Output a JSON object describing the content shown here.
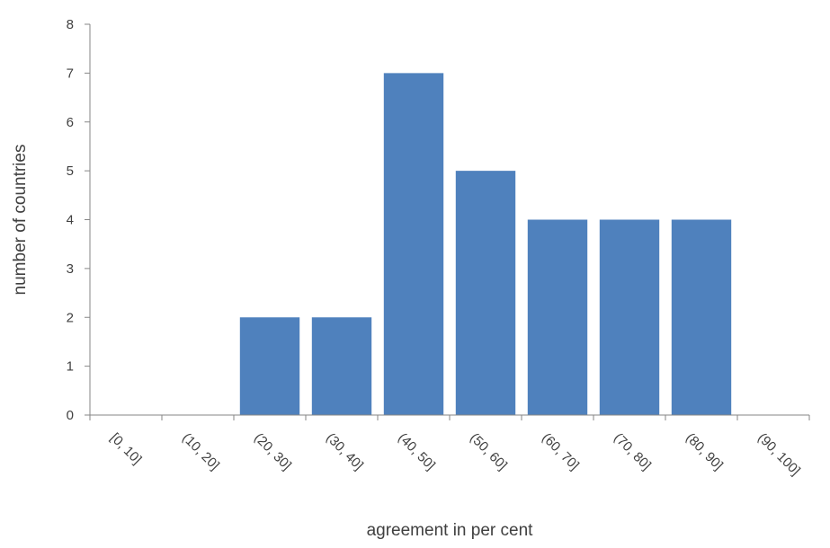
{
  "chart_data": {
    "type": "bar",
    "title": "",
    "xlabel": "agreement in per cent",
    "ylabel": "number of countries",
    "categories": [
      "[0, 10]",
      "(10, 20]",
      "(20, 30]",
      "(30, 40]",
      "(40, 50]",
      "(50, 60]",
      "(60, 70]",
      "(70, 80]",
      "(80, 90]",
      "(90, 100]"
    ],
    "values": [
      0,
      0,
      2,
      2,
      7,
      5,
      4,
      4,
      4,
      0
    ],
    "ylim": [
      0,
      8
    ],
    "yticks": [
      0,
      1,
      2,
      3,
      4,
      5,
      6,
      7,
      8
    ],
    "grid": false,
    "legend": "none",
    "colors": {
      "bar": "#4f81bd",
      "axis": "#868686",
      "text": "#404040"
    }
  }
}
